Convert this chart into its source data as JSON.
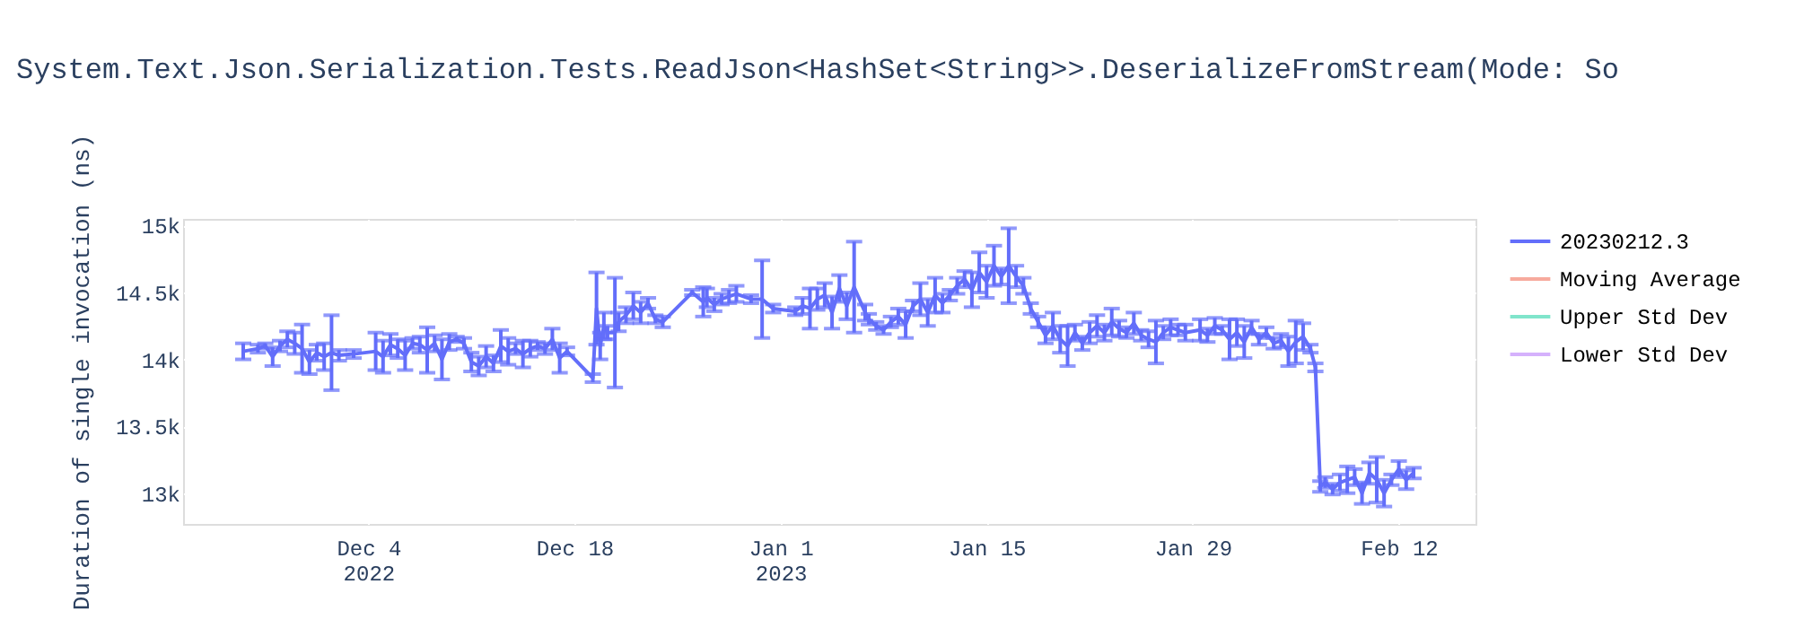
{
  "chart_data": {
    "type": "line",
    "title": "System.Text.Json.Serialization.Tests.ReadJson<HashSet<String>>.DeserializeFromStream(Mode: So",
    "ylabel": "Duration of single invocation (ns)",
    "x": [
      "2022-11-25T12:00",
      "2022-11-26T12:00",
      "2022-11-27",
      "2022-11-27T12:00",
      "2022-11-28",
      "2022-11-28T12:00",
      "2022-11-29",
      "2022-11-29T12:00",
      "2022-11-30",
      "2022-11-30T12:00",
      "2022-12-01",
      "2022-12-01T12:00",
      "2022-12-02",
      "2022-12-03",
      "2022-12-04T12:00",
      "2022-12-05",
      "2022-12-05T12:00",
      "2022-12-06",
      "2022-12-06T12:00",
      "2022-12-07",
      "2022-12-07T12:00",
      "2022-12-08",
      "2022-12-08T12:00",
      "2022-12-09",
      "2022-12-09T12:00",
      "2022-12-10",
      "2022-12-10T12:00",
      "2022-12-11",
      "2022-12-11T12:00",
      "2022-12-12",
      "2022-12-12T12:00",
      "2022-12-13",
      "2022-12-13T12:00",
      "2022-12-14",
      "2022-12-14T12:00",
      "2022-12-15",
      "2022-12-15T12:00",
      "2022-12-16",
      "2022-12-16T12:00",
      "2022-12-17",
      "2022-12-17T12:00",
      "2022-12-19T06:00",
      "2022-12-19T12:00",
      "2022-12-19T18:00",
      "2022-12-20",
      "2022-12-20T06:00",
      "2022-12-20T18:00",
      "2022-12-21",
      "2022-12-21T12:00",
      "2022-12-22",
      "2022-12-22T12:00",
      "2022-12-23",
      "2022-12-23T12:00",
      "2022-12-24",
      "2022-12-26",
      "2022-12-26T18:00",
      "2022-12-27",
      "2022-12-27T12:00",
      "2022-12-28",
      "2022-12-28T12:00",
      "2022-12-29",
      "2022-12-30",
      "2022-12-30T18:00",
      "2022-12-31T12:00",
      "2023-01-02",
      "2023-01-02T12:00",
      "2023-01-03",
      "2023-01-03T12:00",
      "2023-01-04",
      "2023-01-04T12:00",
      "2023-01-05",
      "2023-01-05T12:00",
      "2023-01-06",
      "2023-01-06T18:00",
      "2023-01-07",
      "2023-01-07T12:00",
      "2023-01-08",
      "2023-01-08T12:00",
      "2023-01-09",
      "2023-01-09T12:00",
      "2023-01-10",
      "2023-01-10T12:00",
      "2023-01-11",
      "2023-01-11T12:00",
      "2023-01-12",
      "2023-01-12T12:00",
      "2023-01-13",
      "2023-01-13T12:00",
      "2023-01-14",
      "2023-01-14T12:00",
      "2023-01-15",
      "2023-01-15T12:00",
      "2023-01-16",
      "2023-01-16T12:00",
      "2023-01-17",
      "2023-01-17T12:00",
      "2023-01-18",
      "2023-01-18T12:00",
      "2023-01-19",
      "2023-01-19T12:00",
      "2023-01-20",
      "2023-01-20T12:00",
      "2023-01-21",
      "2023-01-21T12:00",
      "2023-01-22",
      "2023-01-22T12:00",
      "2023-01-23",
      "2023-01-23T12:00",
      "2023-01-24",
      "2023-01-24T12:00",
      "2023-01-25",
      "2023-01-25T12:00",
      "2023-01-26",
      "2023-01-26T12:00",
      "2023-01-27",
      "2023-01-27T12:00",
      "2023-01-28",
      "2023-01-28T12:00",
      "2023-01-29T12:00",
      "2023-01-30",
      "2023-01-30T12:00",
      "2023-01-31",
      "2023-01-31T12:00",
      "2023-02-01",
      "2023-02-01T12:00",
      "2023-02-02",
      "2023-02-02T12:00",
      "2023-02-03",
      "2023-02-03T12:00",
      "2023-02-04",
      "2023-02-04T12:00",
      "2023-02-05",
      "2023-02-05T12:00",
      "2023-02-06",
      "2023-02-06T08:00",
      "2023-02-06T16:00",
      "2023-02-07",
      "2023-02-07T12:00",
      "2023-02-08",
      "2023-02-08T12:00",
      "2023-02-09",
      "2023-02-09T12:00",
      "2023-02-10",
      "2023-02-10T12:00",
      "2023-02-11",
      "2023-02-11T12:00",
      "2023-02-12",
      "2023-02-12T12:00",
      "2023-02-13"
    ],
    "series": [
      {
        "name": "20230212.3",
        "color": "#636efa",
        "values": [
          14060,
          14080,
          14100,
          14020,
          14100,
          14150,
          14120,
          14080,
          13980,
          14050,
          14020,
          14050,
          14030,
          14040,
          14060,
          14020,
          14110,
          14080,
          14030,
          14120,
          14110,
          14070,
          14120,
          14000,
          14130,
          14150,
          14120,
          13980,
          13950,
          14020,
          13970,
          14100,
          14060,
          14080,
          14040,
          14080,
          14100,
          14080,
          14150,
          14010,
          14060,
          13860,
          14380,
          14100,
          14250,
          14200,
          14200,
          14280,
          14330,
          14400,
          14350,
          14420,
          14300,
          14280,
          14500,
          14430,
          14460,
          14410,
          14450,
          14470,
          14490,
          14450,
          14450,
          14380,
          14360,
          14400,
          14380,
          14450,
          14480,
          14350,
          14530,
          14400,
          14540,
          14350,
          14300,
          14250,
          14220,
          14280,
          14320,
          14260,
          14400,
          14450,
          14350,
          14480,
          14420,
          14480,
          14550,
          14600,
          14520,
          14650,
          14580,
          14700,
          14620,
          14700,
          14620,
          14550,
          14380,
          14280,
          14180,
          14250,
          14150,
          14100,
          14200,
          14120,
          14200,
          14250,
          14200,
          14280,
          14230,
          14200,
          14270,
          14180,
          14150,
          14130,
          14200,
          14240,
          14220,
          14200,
          14220,
          14180,
          14250,
          14220,
          14150,
          14200,
          14130,
          14240,
          14150,
          14200,
          14120,
          14140,
          14060,
          14130,
          14170,
          14080,
          13940,
          13050,
          13080,
          13030,
          13080,
          13100,
          13120,
          13000,
          13150,
          13100,
          13000,
          13100,
          13180,
          13100,
          13150
        ],
        "errors": [
          60,
          30,
          20,
          70,
          40,
          60,
          80,
          180,
          90,
          60,
          100,
          280,
          40,
          30,
          140,
          120,
          80,
          70,
          110,
          40,
          60,
          170,
          60,
          150,
          60,
          20,
          40,
          70,
          70,
          80,
          60,
          120,
          100,
          40,
          100,
          60,
          30,
          40,
          80,
          110,
          30,
          30,
          270,
          100,
          100,
          50,
          410,
          70,
          60,
          100,
          80,
          40,
          30,
          40,
          20,
          110,
          70,
          50,
          40,
          50,
          60,
          30,
          290,
          30,
          30,
          60,
          150,
          80,
          90,
          120,
          100,
          100,
          340,
          60,
          40,
          30,
          30,
          40,
          60,
          100,
          40,
          120,
          100,
          130,
          70,
          40,
          60,
          60,
          130,
          150,
          120,
          150,
          60,
          280,
          80,
          60,
          40,
          40,
          60,
          100,
          100,
          150,
          60,
          50,
          80,
          80,
          60,
          100,
          60,
          40,
          80,
          40,
          60,
          160,
          50,
          60,
          40,
          60,
          80,
          50,
          60,
          30,
          150,
          100,
          120,
          50,
          40,
          40,
          40,
          50,
          110,
          160,
          100,
          30,
          30,
          40,
          40,
          40,
          60,
          100,
          60,
          80,
          80,
          170,
          100,
          40,
          60,
          70,
          40
        ]
      },
      {
        "name": "Moving Average",
        "color": "#f7aa9d",
        "values": [
          null,
          null,
          null,
          null,
          null,
          null,
          null,
          null,
          null,
          null,
          null,
          null,
          null,
          null,
          null,
          null,
          null,
          null,
          null,
          null,
          null,
          null,
          null,
          null,
          null,
          null,
          null,
          null,
          null,
          null,
          null,
          null,
          null,
          null,
          null,
          null,
          null,
          null,
          null,
          null,
          null,
          null,
          null,
          null,
          null,
          null,
          null,
          null,
          null,
          null,
          null,
          null,
          null,
          null,
          null,
          null,
          null,
          null,
          null,
          null,
          null,
          null,
          null,
          null,
          null,
          null,
          null,
          null,
          null,
          null,
          null,
          null,
          null,
          null,
          null,
          null,
          null,
          null,
          null,
          null,
          null,
          null,
          null,
          null,
          null,
          null,
          null,
          null,
          null,
          null,
          null,
          null,
          null,
          null,
          null,
          null,
          null,
          null,
          null,
          null,
          null,
          null,
          null,
          null,
          null,
          null,
          null,
          null,
          null,
          null,
          null,
          null,
          null,
          null,
          null,
          null,
          null,
          null,
          null,
          null,
          null,
          null,
          null,
          null,
          null,
          null,
          null,
          null,
          null,
          null,
          null,
          null,
          null,
          null,
          null,
          null,
          null,
          null,
          null,
          null,
          null,
          null,
          null,
          null,
          null,
          null,
          null,
          null,
          null
        ]
      },
      {
        "name": "Upper Std Dev",
        "color": "#80e5cb",
        "values": [
          null,
          null,
          null,
          null,
          null,
          null,
          null,
          null,
          null,
          null,
          null,
          null,
          null,
          null,
          null,
          null,
          null,
          null,
          null,
          null,
          null,
          null,
          null,
          null,
          null,
          null,
          null,
          null,
          null,
          null,
          null,
          null,
          null,
          null,
          null,
          null,
          null,
          null,
          null,
          null,
          null,
          null,
          null,
          null,
          null,
          null,
          null,
          null,
          null,
          null,
          null,
          null,
          null,
          null,
          null,
          null,
          null,
          null,
          null,
          null,
          null,
          null,
          null,
          null,
          null,
          null,
          null,
          null,
          null,
          null,
          null,
          null,
          null,
          null,
          null,
          null,
          null,
          null,
          null,
          null,
          null,
          null,
          null,
          null,
          null,
          null,
          null,
          null,
          null,
          null,
          null,
          null,
          null,
          null,
          null,
          null,
          null,
          null,
          null,
          null,
          null,
          null,
          null,
          null,
          null,
          null,
          null,
          null,
          null,
          null,
          null,
          null,
          null,
          null,
          null,
          null,
          null,
          null,
          null,
          null,
          null,
          null,
          null,
          null,
          null,
          null,
          null,
          null,
          null,
          null,
          null,
          null,
          null,
          null,
          null,
          null,
          null,
          null,
          null,
          null,
          null,
          null,
          null,
          null,
          null,
          null,
          null,
          null,
          null
        ]
      },
      {
        "name": "Lower Std Dev",
        "color": "#d5b1fc",
        "values": [
          null,
          null,
          null,
          null,
          null,
          null,
          null,
          null,
          null,
          null,
          null,
          null,
          null,
          null,
          null,
          null,
          null,
          null,
          null,
          null,
          null,
          null,
          null,
          null,
          null,
          null,
          null,
          null,
          null,
          null,
          null,
          null,
          null,
          null,
          null,
          null,
          null,
          null,
          null,
          null,
          null,
          null,
          null,
          null,
          null,
          null,
          null,
          null,
          null,
          null,
          null,
          null,
          null,
          null,
          null,
          null,
          null,
          null,
          null,
          null,
          null,
          null,
          null,
          null,
          null,
          null,
          null,
          null,
          null,
          null,
          null,
          null,
          null,
          null,
          null,
          null,
          null,
          null,
          null,
          null,
          null,
          null,
          null,
          null,
          null,
          null,
          null,
          null,
          null,
          null,
          null,
          null,
          null,
          null,
          null,
          null,
          null,
          null,
          null,
          null,
          null,
          null,
          null,
          null,
          null,
          null,
          null,
          null,
          null,
          null,
          null,
          null,
          null,
          null,
          null,
          null,
          null,
          null,
          null,
          null,
          null,
          null,
          null,
          null,
          null,
          null,
          null,
          null,
          null,
          null,
          null,
          null,
          null,
          null,
          null,
          null,
          null,
          null,
          null,
          null,
          null,
          null,
          null,
          null,
          null,
          null,
          null,
          null,
          null
        ]
      }
    ],
    "xlim": [
      "2022-11-21T10:00",
      "2023-02-17T05:00"
    ],
    "xticks": [
      {
        "value": "2022-12-04",
        "label": "Dec 4\n2022"
      },
      {
        "value": "2022-12-18",
        "label": "Dec 18"
      },
      {
        "value": "2023-01-01",
        "label": "Jan 1\n2023"
      },
      {
        "value": "2023-01-15",
        "label": "Jan 15"
      },
      {
        "value": "2023-01-29",
        "label": "Jan 29"
      },
      {
        "value": "2023-02-12",
        "label": "Feb 12"
      }
    ],
    "ylim": [
      12770,
      15050
    ],
    "yticks": [
      {
        "value": 13000,
        "label": "13k"
      },
      {
        "value": 13500,
        "label": "13.5k"
      },
      {
        "value": 14000,
        "label": "14k"
      },
      {
        "value": 14500,
        "label": "14.5k"
      },
      {
        "value": 15000,
        "label": "15k"
      }
    ],
    "grid": true,
    "legend": "top right",
    "marker": "none",
    "line_style": "solid"
  }
}
